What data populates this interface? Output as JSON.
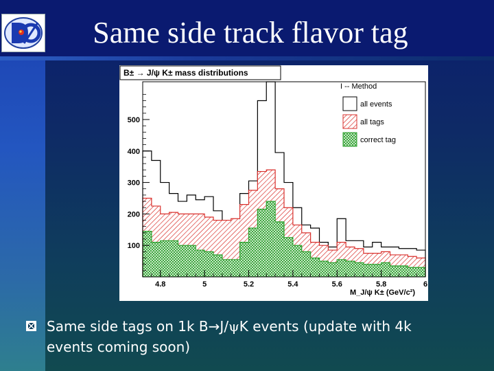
{
  "slide": {
    "title": "Same side track flavor tag",
    "bullet": {
      "pre": "Same side tags on 1k B",
      "mid": "J/",
      "psi": "ψ",
      "post": "K events (update with 4k events coming soon)"
    }
  },
  "colors": {
    "title_band": "#0a1a70",
    "all_tags": "#d9302c",
    "correct_tag": "#2ea12e",
    "all_events": "#000000",
    "bullet": "#ffffff"
  },
  "logo": {
    "icon": "dzero-logo-icon"
  },
  "chart_data": {
    "type": "bar",
    "title": "B± → J/ψ K± mass distributions",
    "xlabel": "M_J/ψ K± (GeV/c²)",
    "ylabel": "",
    "xlim": [
      4.72,
      6.0
    ],
    "ylim": [
      0,
      620
    ],
    "x_ticks": [
      "4.8",
      "5",
      "5.2",
      "5.4",
      "5.6",
      "5.8",
      "6"
    ],
    "y_ticks": [
      "100",
      "200",
      "300",
      "400",
      "500"
    ],
    "legend": {
      "title": "I -- Method",
      "placement": "top-right",
      "entries": [
        "all events",
        "all tags",
        "correct tag"
      ]
    },
    "bin_edges": [
      4.72,
      4.76,
      4.8,
      4.84,
      4.88,
      4.92,
      4.96,
      5.0,
      5.04,
      5.08,
      5.12,
      5.16,
      5.2,
      5.24,
      5.28,
      5.32,
      5.36,
      5.4,
      5.44,
      5.48,
      5.52,
      5.56,
      5.6,
      5.64,
      5.68,
      5.72,
      5.76,
      5.8,
      5.84,
      5.88,
      5.92,
      5.96,
      6.0
    ],
    "series": [
      {
        "name": "all events",
        "values": [
          400,
          370,
          300,
          265,
          240,
          260,
          245,
          255,
          210,
          180,
          170,
          265,
          305,
          560,
          620,
          395,
          300,
          220,
          165,
          155,
          110,
          95,
          185,
          115,
          115,
          95,
          110,
          95,
          95,
          90,
          90,
          85
        ]
      },
      {
        "name": "all tags",
        "values": [
          250,
          225,
          200,
          205,
          200,
          200,
          200,
          190,
          180,
          180,
          185,
          230,
          275,
          335,
          340,
          280,
          220,
          165,
          140,
          110,
          100,
          85,
          110,
          95,
          90,
          75,
          75,
          80,
          70,
          70,
          65,
          60
        ]
      },
      {
        "name": "correct tag",
        "values": [
          145,
          110,
          115,
          115,
          100,
          100,
          85,
          80,
          70,
          55,
          55,
          110,
          155,
          215,
          240,
          175,
          125,
          100,
          80,
          60,
          50,
          45,
          55,
          50,
          45,
          40,
          40,
          45,
          35,
          35,
          30,
          30
        ]
      }
    ]
  }
}
